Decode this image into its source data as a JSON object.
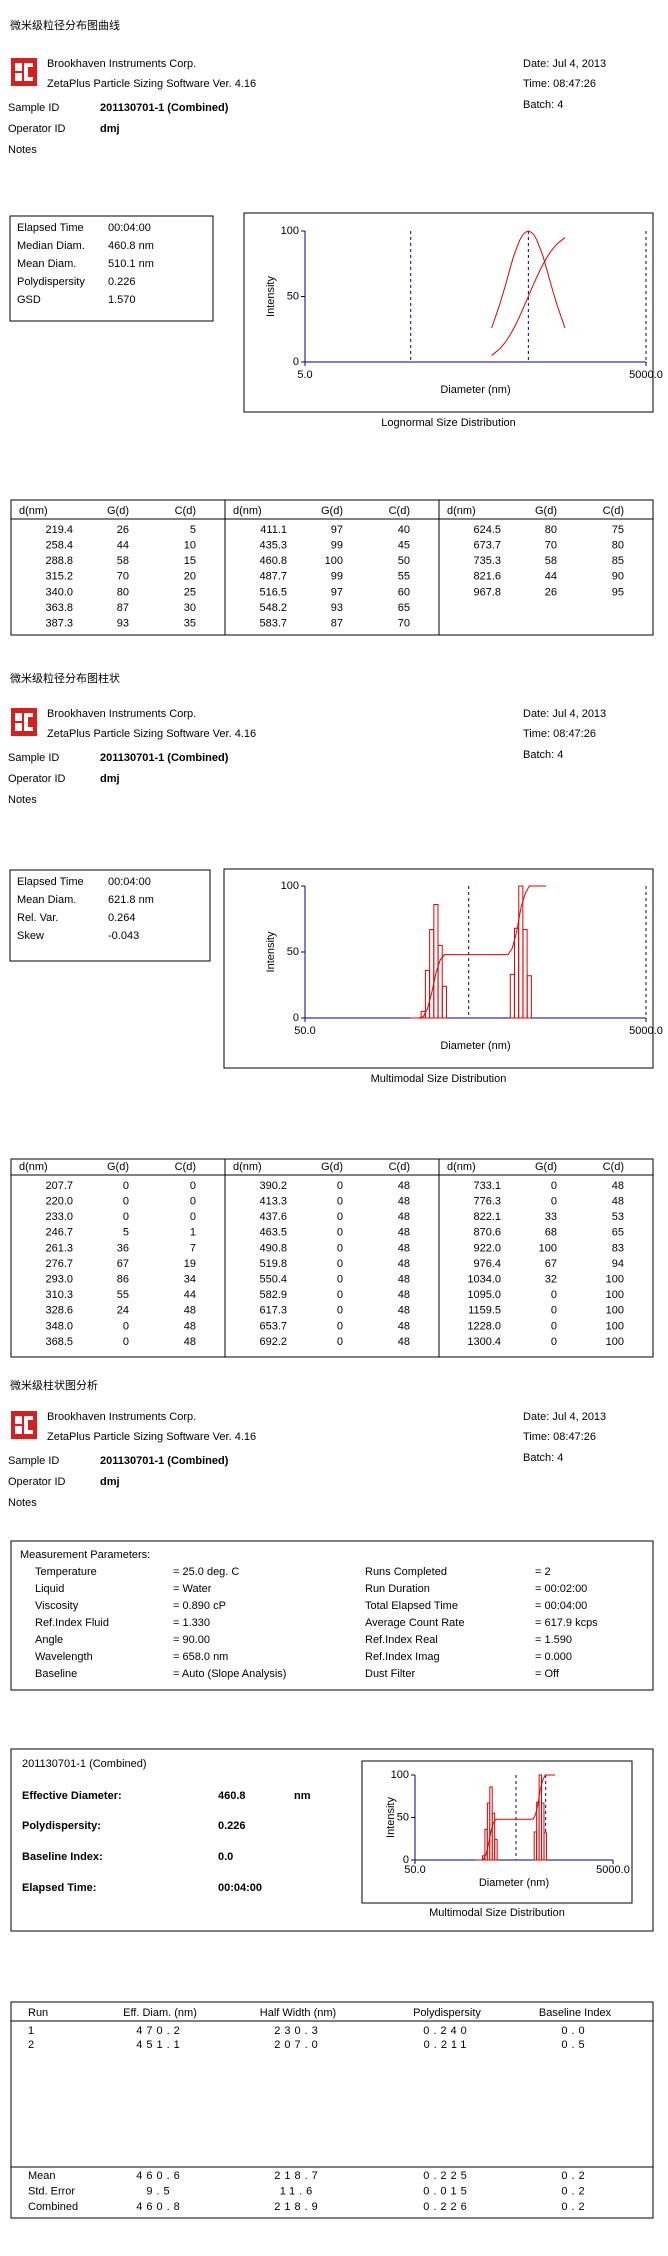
{
  "sections": [
    {
      "title": "微米级粒径分布图曲线",
      "header": {
        "company": "Brookhaven Instruments Corp.",
        "software": "ZetaPlus Particle Sizing Software Ver. 4.16",
        "date": "Date: Jul 4, 2013",
        "time": "Time: 08:47:26",
        "batch": "Batch: 4",
        "sample_id_label": "Sample ID",
        "sample_id": "201130701-1 (Combined)",
        "operator_label": "Operator ID",
        "operator": "dmj",
        "notes_label": "Notes"
      },
      "stats": [
        [
          "Elapsed Time",
          "00:04:00"
        ],
        [
          "Median Diam.",
          "460.8 nm"
        ],
        [
          "Mean Diam.",
          "510.1 nm"
        ],
        [
          "Polydispersity",
          "0.226"
        ],
        [
          "GSD",
          "1.570"
        ]
      ],
      "chart": {
        "type": "line",
        "y_label": "Intensity",
        "x_label": "Diameter (nm)",
        "caption": "Lognormal Size Distribution",
        "log_x": true,
        "xlim": [
          5,
          5000
        ],
        "xticks": [
          {
            "value": 5,
            "label": "5.0"
          },
          {
            "value": 5000,
            "label": "5000.0"
          }
        ],
        "ylim": [
          0,
          100
        ],
        "yticks": [
          0,
          50,
          100
        ],
        "color": "#e00000"
      },
      "table": {
        "groups": [
          {
            "header": [
              "d(nm)",
              "G(d)",
              "C(d)"
            ],
            "rows": [
              [
                "219.4",
                "26",
                "5"
              ],
              [
                "258.4",
                "44",
                "10"
              ],
              [
                "288.8",
                "58",
                "15"
              ],
              [
                "315.2",
                "70",
                "20"
              ],
              [
                "340.0",
                "80",
                "25"
              ],
              [
                "363.8",
                "87",
                "30"
              ],
              [
                "387.3",
                "93",
                "35"
              ]
            ]
          },
          {
            "header": [
              "d(nm)",
              "G(d)",
              "C(d)"
            ],
            "rows": [
              [
                "411.1",
                "97",
                "40"
              ],
              [
                "435.3",
                "99",
                "45"
              ],
              [
                "460.8",
                "100",
                "50"
              ],
              [
                "487.7",
                "99",
                "55"
              ],
              [
                "516.5",
                "97",
                "60"
              ],
              [
                "548.2",
                "93",
                "65"
              ],
              [
                "583.7",
                "87",
                "70"
              ]
            ]
          },
          {
            "header": [
              "d(nm)",
              "G(d)",
              "C(d)"
            ],
            "rows": [
              [
                "624.5",
                "80",
                "75"
              ],
              [
                "673.7",
                "70",
                "80"
              ],
              [
                "735.3",
                "58",
                "85"
              ],
              [
                "821.6",
                "44",
                "90"
              ],
              [
                "967.8",
                "26",
                "95"
              ]
            ]
          }
        ]
      }
    },
    {
      "title": "微米级粒径分布图柱状",
      "header": {
        "company": "Brookhaven Instruments Corp.",
        "software": "ZetaPlus Particle Sizing Software Ver. 4.16",
        "date": "Date: Jul 4, 2013",
        "time": "Time: 08:47:26",
        "batch": "Batch: 4",
        "sample_id_label": "Sample ID",
        "sample_id": "201130701-1 (Combined)",
        "operator_label": "Operator ID",
        "operator": "dmj",
        "notes_label": "Notes"
      },
      "stats": [
        [
          "Elapsed Time",
          "00:04:00"
        ],
        [
          "Mean Diam.",
          "621.8 nm"
        ],
        [
          "Rel. Var.",
          "0.264"
        ],
        [
          "Skew",
          "-0.043"
        ]
      ],
      "chart": {
        "type": "histogram",
        "y_label": "Intensity",
        "x_label": "Diameter (nm)",
        "caption": "Multimodal Size Distribution",
        "log_x": true,
        "xlim": [
          50,
          5000
        ],
        "xticks": [
          {
            "value": 50,
            "label": "50.0"
          },
          {
            "value": 5000,
            "label": "5000.0"
          }
        ],
        "ylim": [
          0,
          100
        ],
        "yticks": [
          0,
          50,
          100
        ],
        "color": "#e00000"
      },
      "table": {
        "groups": [
          {
            "header": [
              "d(nm)",
              "G(d)",
              "C(d)"
            ],
            "rows": [
              [
                "207.7",
                "0",
                "0"
              ],
              [
                "220.0",
                "0",
                "0"
              ],
              [
                "233.0",
                "0",
                "0"
              ],
              [
                "246.7",
                "5",
                "1"
              ],
              [
                "261.3",
                "36",
                "7"
              ],
              [
                "276.7",
                "67",
                "19"
              ],
              [
                "293.0",
                "86",
                "34"
              ],
              [
                "310.3",
                "55",
                "44"
              ],
              [
                "328.6",
                "24",
                "48"
              ],
              [
                "348.0",
                "0",
                "48"
              ],
              [
                "368.5",
                "0",
                "48"
              ]
            ]
          },
          {
            "header": [
              "d(nm)",
              "G(d)",
              "C(d)"
            ],
            "rows": [
              [
                "390.2",
                "0",
                "48"
              ],
              [
                "413.3",
                "0",
                "48"
              ],
              [
                "437.6",
                "0",
                "48"
              ],
              [
                "463.5",
                "0",
                "48"
              ],
              [
                "490.8",
                "0",
                "48"
              ],
              [
                "519.8",
                "0",
                "48"
              ],
              [
                "550.4",
                "0",
                "48"
              ],
              [
                "582.9",
                "0",
                "48"
              ],
              [
                "617.3",
                "0",
                "48"
              ],
              [
                "653.7",
                "0",
                "48"
              ],
              [
                "692.2",
                "0",
                "48"
              ]
            ]
          },
          {
            "header": [
              "d(nm)",
              "G(d)",
              "C(d)"
            ],
            "rows": [
              [
                "733.1",
                "0",
                "48"
              ],
              [
                "776.3",
                "0",
                "48"
              ],
              [
                "822.1",
                "33",
                "53"
              ],
              [
                "870.6",
                "68",
                "65"
              ],
              [
                "922.0",
                "100",
                "83"
              ],
              [
                "976.4",
                "67",
                "94"
              ],
              [
                "1034.0",
                "32",
                "100"
              ],
              [
                "1095.0",
                "0",
                "100"
              ],
              [
                "1159.5",
                "0",
                "100"
              ],
              [
                "1228.0",
                "0",
                "100"
              ],
              [
                "1300.4",
                "0",
                "100"
              ]
            ]
          }
        ]
      }
    },
    {
      "title": "微米级柱状图分析",
      "header": {
        "company": "Brookhaven Instruments Corp.",
        "software": "ZetaPlus Particle Sizing Software Ver. 4.16",
        "date": "Date: Jul 4, 2013",
        "time": "Time: 08:47:26",
        "batch": "Batch: 4",
        "sample_id_label": "Sample ID",
        "sample_id": "201130701-1 (Combined)",
        "operator_label": "Operator ID",
        "operator": "dmj",
        "notes_label": "Notes"
      },
      "parameters": {
        "title": "Measurement Parameters:",
        "left": [
          [
            "Temperature",
            "= 25.0 deg. C"
          ],
          [
            "Liquid",
            "= Water"
          ],
          [
            "Viscosity",
            "= 0.890 cP"
          ],
          [
            "Ref.Index Fluid",
            "= 1.330"
          ],
          [
            "Angle",
            "= 90.00"
          ],
          [
            "Wavelength",
            "= 658.0 nm"
          ],
          [
            "Baseline",
            "= Auto (Slope Analysis)"
          ]
        ],
        "right": [
          [
            "Runs Completed",
            "= 2"
          ],
          [
            "Run Duration",
            "= 00:02:00"
          ],
          [
            "Total Elapsed Time",
            "= 00:04:00"
          ],
          [
            "Average Count Rate",
            "= 617.9 kcps"
          ],
          [
            "Ref.Index Real",
            "= 1.590"
          ],
          [
            "Ref.Index Imag",
            "= 0.000"
          ],
          [
            "Dust Filter",
            "= Off"
          ]
        ]
      },
      "results": {
        "sample": "201130701-1 (Combined)",
        "rows": [
          {
            "label": "Effective Diameter:",
            "value": "460.8",
            "unit": "nm"
          },
          {
            "label": "Polydispersity:",
            "value": "0.226"
          },
          {
            "label": "Baseline Index:",
            "value": "0.0"
          },
          {
            "label": "Elapsed Time:",
            "value": "00:04:00"
          }
        ]
      },
      "chart": {
        "type": "histogram",
        "y_label": "Intensity",
        "x_label": "Diameter (nm)",
        "caption": "Multimodal Size Distribution",
        "log_x": true,
        "xlim": [
          50,
          5000
        ],
        "xticks": [
          {
            "value": 50,
            "label": "50.0"
          },
          {
            "value": 5000,
            "label": "5000.0"
          }
        ],
        "ylim": [
          0,
          100
        ],
        "yticks": [
          0,
          50,
          100
        ],
        "color": "#e00000"
      },
      "runs": {
        "columns": [
          "Run",
          "Eff. Diam. (nm)",
          "Half Width (nm)",
          "Polydispersity",
          "Baseline Index"
        ],
        "rows": [
          [
            "1",
            "470.2",
            "230.3",
            "0.240",
            "0.0"
          ],
          [
            "2",
            "451.1",
            "207.0",
            "0.211",
            "0.5"
          ]
        ],
        "summary": [
          [
            "Mean",
            "460.6",
            "218.7",
            "0.225",
            "0.2"
          ],
          [
            "Std. Error",
            "9.5",
            "11.6",
            "0.015",
            "0.2"
          ],
          [
            "Combined",
            "460.8",
            "218.9",
            "0.226",
            "0.2"
          ]
        ]
      }
    }
  ]
}
